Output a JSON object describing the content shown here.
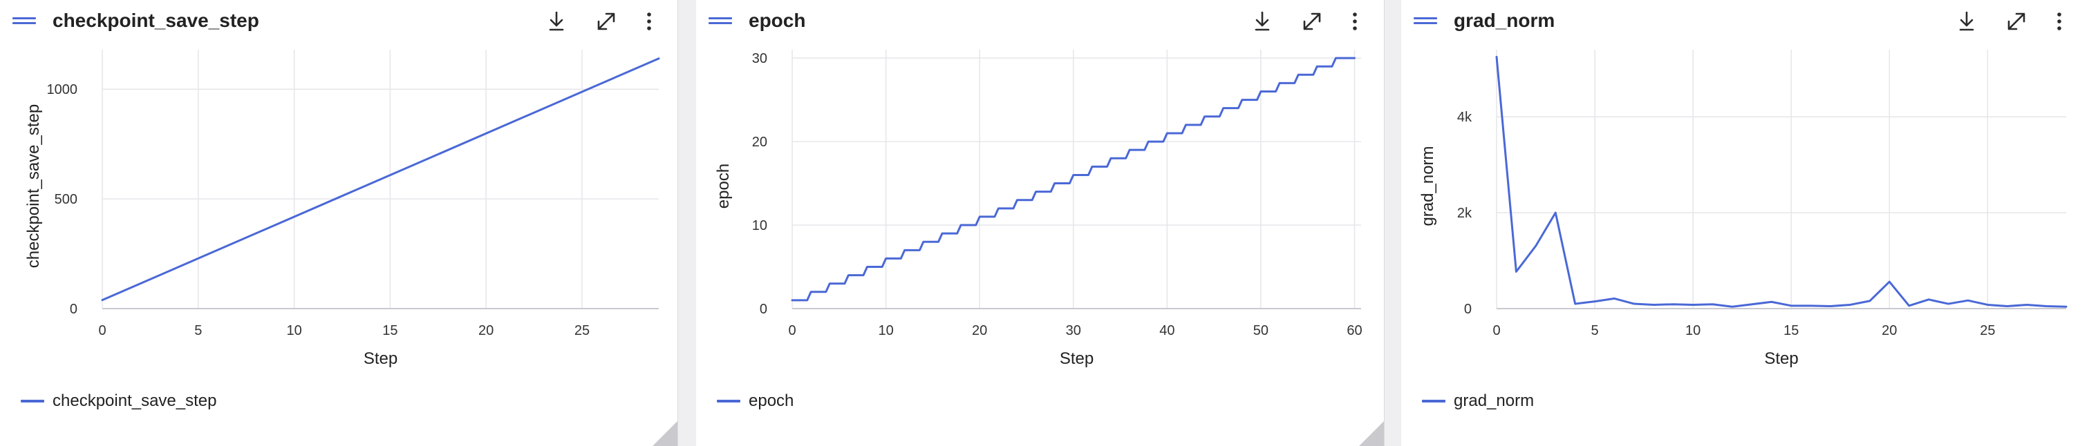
{
  "cards": [
    {
      "title": "checkpoint_save_step",
      "legend": "checkpoint_save_step"
    },
    {
      "title": "epoch",
      "legend": "epoch"
    },
    {
      "title": "grad_norm",
      "legend": "grad_norm"
    }
  ],
  "colors": {
    "series": "#4a68d6",
    "grid": "#e6e6ea",
    "axis": "#c9c9d0"
  },
  "icons": {
    "menu": "hamburger-icon",
    "download": "download-icon",
    "expand": "expand-icon",
    "more": "more-vertical-icon"
  },
  "chart_data": [
    {
      "type": "line",
      "title": "checkpoint_save_step",
      "xlabel": "Step",
      "ylabel": "checkpoint_save_step",
      "xlim": [
        0,
        29
      ],
      "ylim": [
        0,
        1180
      ],
      "xticks": [
        0,
        5,
        10,
        15,
        20,
        25
      ],
      "yticks": [
        0,
        500,
        1000
      ],
      "ytick_labels": [
        "0",
        "500",
        "1000"
      ],
      "series": [
        {
          "name": "checkpoint_save_step",
          "x": [
            0,
            29
          ],
          "values": [
            39,
            1140
          ]
        }
      ]
    },
    {
      "type": "line",
      "title": "epoch",
      "xlabel": "Step",
      "ylabel": "epoch",
      "xlim": [
        0,
        60.7
      ],
      "ylim": [
        0,
        31
      ],
      "xticks": [
        0,
        10,
        20,
        30,
        40,
        50,
        60
      ],
      "yticks": [
        0,
        10,
        20,
        30
      ],
      "ytick_labels": [
        "0",
        "10",
        "20",
        "30"
      ],
      "series": [
        {
          "name": "epoch",
          "x": [
            0,
            1,
            2,
            3,
            4,
            5,
            6,
            7,
            8,
            9,
            10,
            11,
            12,
            13,
            14,
            15,
            16,
            17,
            18,
            19,
            20,
            21,
            22,
            23,
            24,
            25,
            26,
            27,
            28,
            29,
            30,
            31,
            32,
            33,
            34,
            35,
            36,
            37,
            38,
            39,
            40,
            41,
            42,
            43,
            44,
            45,
            46,
            47,
            48,
            49,
            50,
            51,
            52,
            53,
            54,
            55,
            56,
            57,
            58,
            59,
            60
          ],
          "values": [
            1,
            1,
            2,
            2,
            3,
            3,
            4,
            4,
            5,
            5,
            6,
            6,
            7,
            7,
            8,
            8,
            9,
            9,
            10,
            10,
            11,
            11,
            12,
            12,
            13,
            13,
            14,
            14,
            15,
            15,
            16,
            16,
            17,
            17,
            18,
            18,
            19,
            19,
            20,
            20,
            21,
            21,
            22,
            22,
            23,
            23,
            24,
            24,
            25,
            25,
            26,
            26,
            27,
            27,
            28,
            28,
            29,
            29,
            30,
            30,
            30
          ]
        }
      ]
    },
    {
      "type": "line",
      "title": "grad_norm",
      "xlabel": "Step",
      "ylabel": "grad_norm",
      "xlim": [
        0,
        29
      ],
      "ylim": [
        0,
        5400
      ],
      "xticks": [
        0,
        5,
        10,
        15,
        20,
        25
      ],
      "yticks": [
        0,
        2000,
        4000
      ],
      "ytick_labels": [
        "0",
        "2k",
        "4k"
      ],
      "series": [
        {
          "name": "grad_norm",
          "x": [
            0,
            1,
            2,
            3,
            4,
            5,
            6,
            7,
            8,
            9,
            10,
            11,
            12,
            13,
            14,
            15,
            16,
            17,
            18,
            19,
            20,
            21,
            22,
            23,
            24,
            25,
            26,
            27,
            28,
            29
          ],
          "values": [
            5250,
            770,
            1310,
            2000,
            100,
            150,
            210,
            100,
            80,
            90,
            80,
            90,
            40,
            90,
            140,
            60,
            60,
            50,
            80,
            160,
            560,
            60,
            190,
            100,
            170,
            80,
            50,
            80,
            50,
            40
          ]
        }
      ]
    }
  ]
}
